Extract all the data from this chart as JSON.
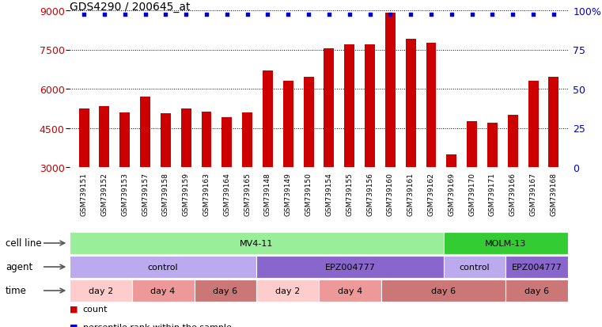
{
  "title": "GDS4290 / 200645_at",
  "samples": [
    "GSM739151",
    "GSM739152",
    "GSM739153",
    "GSM739157",
    "GSM739158",
    "GSM739159",
    "GSM739163",
    "GSM739164",
    "GSM739165",
    "GSM739148",
    "GSM739149",
    "GSM739150",
    "GSM739154",
    "GSM739155",
    "GSM739156",
    "GSM739160",
    "GSM739161",
    "GSM739162",
    "GSM739169",
    "GSM739170",
    "GSM739171",
    "GSM739166",
    "GSM739167",
    "GSM739168"
  ],
  "bar_values": [
    5250,
    5320,
    5100,
    5700,
    5050,
    5250,
    5130,
    4900,
    5100,
    6700,
    6300,
    6450,
    7550,
    7700,
    7700,
    8900,
    7900,
    7750,
    3500,
    4750,
    4700,
    5000,
    6300,
    6450
  ],
  "bar_color": "#cc0000",
  "dot_color": "#0000cc",
  "ylim": [
    3000,
    9000
  ],
  "yticks": [
    3000,
    4500,
    6000,
    7500,
    9000
  ],
  "y2ticks": [
    0,
    25,
    50,
    75,
    100
  ],
  "title_fontsize": 10,
  "cell_line_row": {
    "label": "cell line",
    "segments": [
      {
        "text": "MV4-11",
        "start": 0,
        "end": 18,
        "color": "#99ee99"
      },
      {
        "text": "MOLM-13",
        "start": 18,
        "end": 24,
        "color": "#33cc33"
      }
    ]
  },
  "agent_row": {
    "label": "agent",
    "segments": [
      {
        "text": "control",
        "start": 0,
        "end": 9,
        "color": "#bbaaee"
      },
      {
        "text": "EPZ004777",
        "start": 9,
        "end": 18,
        "color": "#8866cc"
      },
      {
        "text": "control",
        "start": 18,
        "end": 21,
        "color": "#bbaaee"
      },
      {
        "text": "EPZ004777",
        "start": 21,
        "end": 24,
        "color": "#8866cc"
      }
    ]
  },
  "time_row": {
    "label": "time",
    "segments": [
      {
        "text": "day 2",
        "start": 0,
        "end": 3,
        "color": "#ffcccc"
      },
      {
        "text": "day 4",
        "start": 3,
        "end": 6,
        "color": "#ee9999"
      },
      {
        "text": "day 6",
        "start": 6,
        "end": 9,
        "color": "#cc7777"
      },
      {
        "text": "day 2",
        "start": 9,
        "end": 12,
        "color": "#ffcccc"
      },
      {
        "text": "day 4",
        "start": 12,
        "end": 15,
        "color": "#ee9999"
      },
      {
        "text": "day 6",
        "start": 15,
        "end": 21,
        "color": "#cc7777"
      },
      {
        "text": "day 6",
        "start": 21,
        "end": 24,
        "color": "#cc7777"
      }
    ]
  }
}
